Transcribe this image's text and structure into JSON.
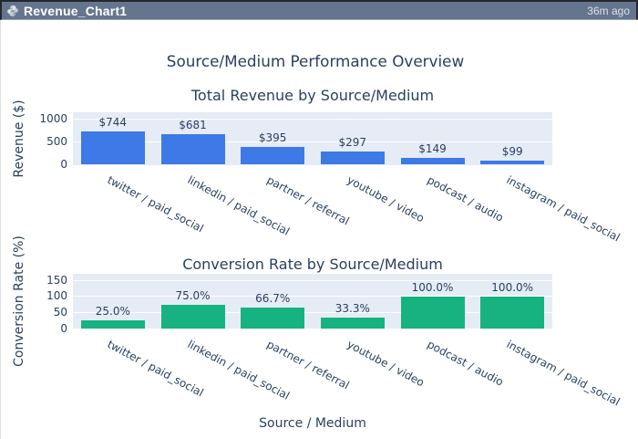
{
  "header": {
    "title": "Revenue_Chart1",
    "timestamp": "36m ago",
    "icon": "python-icon",
    "bg_color": "#66758e"
  },
  "figure": {
    "title": "Source/Medium Performance Overview",
    "xlabel": "Source / Medium"
  },
  "chart_data": [
    {
      "type": "bar",
      "title": "Total Revenue by Source/Medium",
      "categories": [
        "twitter / paid_social",
        "linkedin / paid_social",
        "partner / referral",
        "youtube / video",
        "podcast / audio",
        "instagram / paid_social"
      ],
      "values": [
        744,
        681,
        395,
        297,
        149,
        99
      ],
      "bar_labels": [
        "$744",
        "$681",
        "$395",
        "$297",
        "$149",
        "$99"
      ],
      "ylabel": "Revenue ($)",
      "yticks": [
        0,
        500,
        1000
      ],
      "ylim": [
        0,
        1160
      ],
      "bar_color": "#3e79e8",
      "plot_bg": "#e5ecf6",
      "grid": true,
      "legend": false
    },
    {
      "type": "bar",
      "title": "Conversion Rate by Source/Medium",
      "categories": [
        "twitter / paid_social",
        "linkedin / paid_social",
        "partner / referral",
        "youtube / video",
        "podcast / audio",
        "instagram / paid_social"
      ],
      "values": [
        25.0,
        75.0,
        66.7,
        33.3,
        100.0,
        100.0
      ],
      "bar_labels": [
        "25.0%",
        "75.0%",
        "66.7%",
        "33.3%",
        "100.0%",
        "100.0%"
      ],
      "ylabel": "Conversion Rate (%)",
      "xlabel": "Source / Medium",
      "yticks": [
        0,
        50,
        100,
        150
      ],
      "ylim": [
        0,
        170
      ],
      "bar_color": "#16b380",
      "plot_bg": "#e5ecf6",
      "grid": true,
      "legend": false
    }
  ]
}
